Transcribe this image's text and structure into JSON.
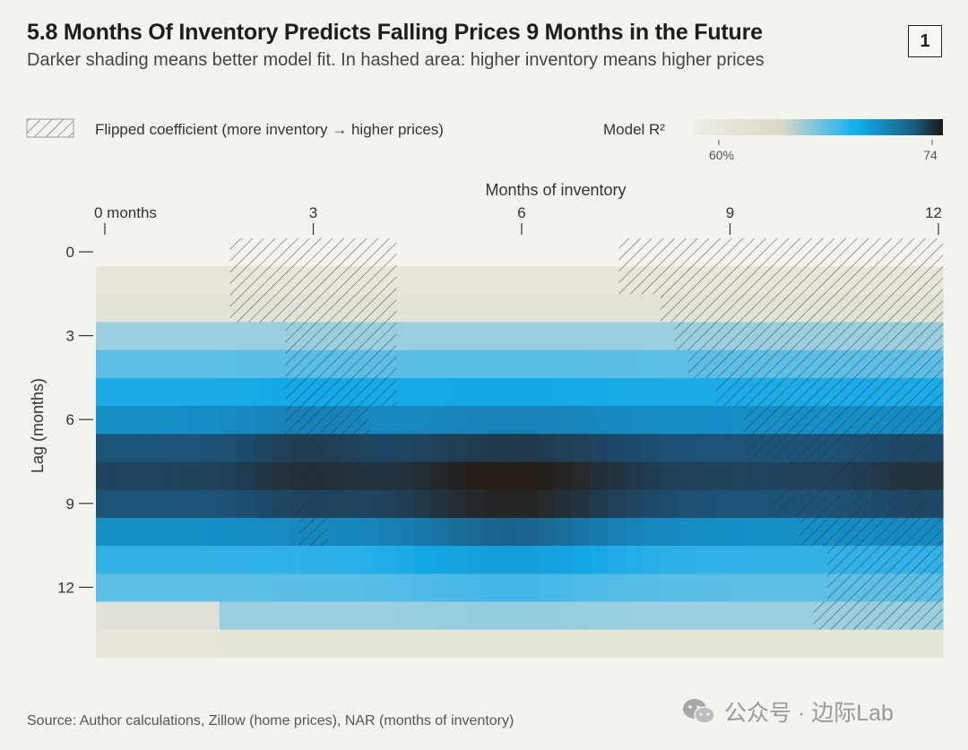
{
  "figure_number": "1",
  "source": "Source: Author calculations, Zillow (home prices), NAR (months of inventory)",
  "watermark": "公众号 · 边际Lab",
  "colors": {
    "background": "#f4f4ef",
    "scale_low": "#e6e4d6",
    "scale_mid": "#0fb2f2",
    "scale_high": "#241e18",
    "hatch": "#3a3a3a"
  },
  "chart_data": {
    "type": "heatmap",
    "title": "5.8 Months Of Inventory Predicts Falling Prices 9 Months in the Future",
    "subtitle": "Darker shading means better model fit. In hashed area: higher inventory means higher prices",
    "xlabel": "Months of inventory",
    "ylabel": "Lag (months)",
    "x_ticks": [
      {
        "value": 0,
        "label": "0 months"
      },
      {
        "value": 3,
        "label": "3"
      },
      {
        "value": 6,
        "label": "6"
      },
      {
        "value": 9,
        "label": "9"
      },
      {
        "value": 12,
        "label": "12"
      }
    ],
    "y_ticks": [
      {
        "value": 0,
        "label": "0"
      },
      {
        "value": 3,
        "label": "3"
      },
      {
        "value": 6,
        "label": "6"
      },
      {
        "value": 9,
        "label": "9"
      },
      {
        "value": 12,
        "label": "12"
      }
    ],
    "x_range": [
      0,
      12.2
    ],
    "lag_rows": [
      0.5,
      1.5,
      2.5,
      3.5,
      4.5,
      5.5,
      6.5,
      7.5,
      8.5,
      9.5,
      10.5,
      11.5,
      12.5,
      13.5
    ],
    "row_base_r2": [
      60,
      61,
      64.5,
      66,
      67.5,
      69,
      71.5,
      72.2,
      71.5,
      69,
      67,
      66,
      64.5,
      60.5
    ],
    "peak": {
      "x": 5.8,
      "lag": 8.5
    },
    "color_scale": {
      "label": "Model R²",
      "min_label": "60%",
      "max_label": "74",
      "min": 60,
      "max": 74
    },
    "hatch_legend": "Flipped coefficient (more inventory → higher prices)",
    "hatched_regions": [
      {
        "x": [
          1.8,
          4.2
        ],
        "lag": [
          -0.5,
          2.5
        ]
      },
      {
        "x": [
          2.6,
          4.2
        ],
        "lag": [
          2.5,
          5.5
        ]
      },
      {
        "x": [
          2.6,
          3.8
        ],
        "lag": [
          5.5,
          8.5
        ]
      },
      {
        "x": [
          2.4,
          3.6
        ],
        "lag": [
          8.5,
          9.5
        ]
      },
      {
        "x": [
          2.8,
          3.2
        ],
        "lag": [
          9.5,
          10.5
        ]
      },
      {
        "x": [
          7.4,
          12.2
        ],
        "lag": [
          -0.5,
          1.5
        ]
      },
      {
        "x": [
          8.0,
          12.2
        ],
        "lag": [
          1.5,
          2.5
        ]
      },
      {
        "x": [
          8.2,
          12.2
        ],
        "lag": [
          2.5,
          3.5
        ]
      },
      {
        "x": [
          8.4,
          12.2
        ],
        "lag": [
          3.5,
          4.5
        ]
      },
      {
        "x": [
          8.8,
          12.2
        ],
        "lag": [
          4.5,
          5.5
        ]
      },
      {
        "x": [
          9.2,
          12.2
        ],
        "lag": [
          5.5,
          7.5
        ]
      },
      {
        "x": [
          9.6,
          12.2
        ],
        "lag": [
          7.5,
          9.5
        ]
      },
      {
        "x": [
          10.0,
          12.2
        ],
        "lag": [
          9.5,
          10.5
        ]
      },
      {
        "x": [
          10.4,
          12.2
        ],
        "lag": [
          10.5,
          12.5
        ]
      },
      {
        "x": [
          10.2,
          12.2
        ],
        "lag": [
          12.5,
          13.5
        ]
      }
    ]
  }
}
